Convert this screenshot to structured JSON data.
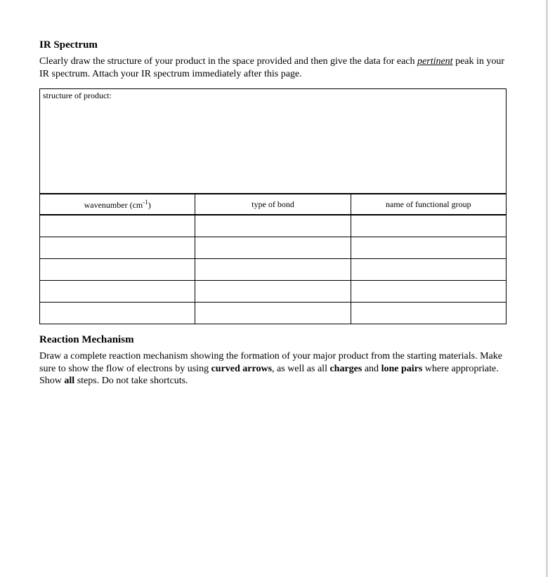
{
  "ir": {
    "title": "IR Spectrum",
    "instructions_pre": "Clearly draw the structure of your product in the space provided and then give the data for each ",
    "instructions_emph": "pertinent",
    "instructions_post": " peak in your IR spectrum.  Attach your IR spectrum immediately after this page.",
    "structure_label": "structure of product:",
    "table": {
      "col1_pre": "wavenumber (cm",
      "col1_sup": "-1",
      "col1_post": ")",
      "col2": "type of bond",
      "col3": "name of functional group",
      "blank_rows": 5
    }
  },
  "mech": {
    "title": "Reaction Mechanism",
    "p1": "Draw a complete reaction mechanism showing the formation of your major product from the starting materials.  Make sure to show the flow of electrons by using ",
    "b1": "curved arrows",
    "p2": ", as well as all ",
    "b2": "charges",
    "p3": " and ",
    "b3": "lone pairs",
    "p4": " where appropriate.  Show ",
    "b4": "all",
    "p5": " steps.  Do not take shortcuts."
  }
}
